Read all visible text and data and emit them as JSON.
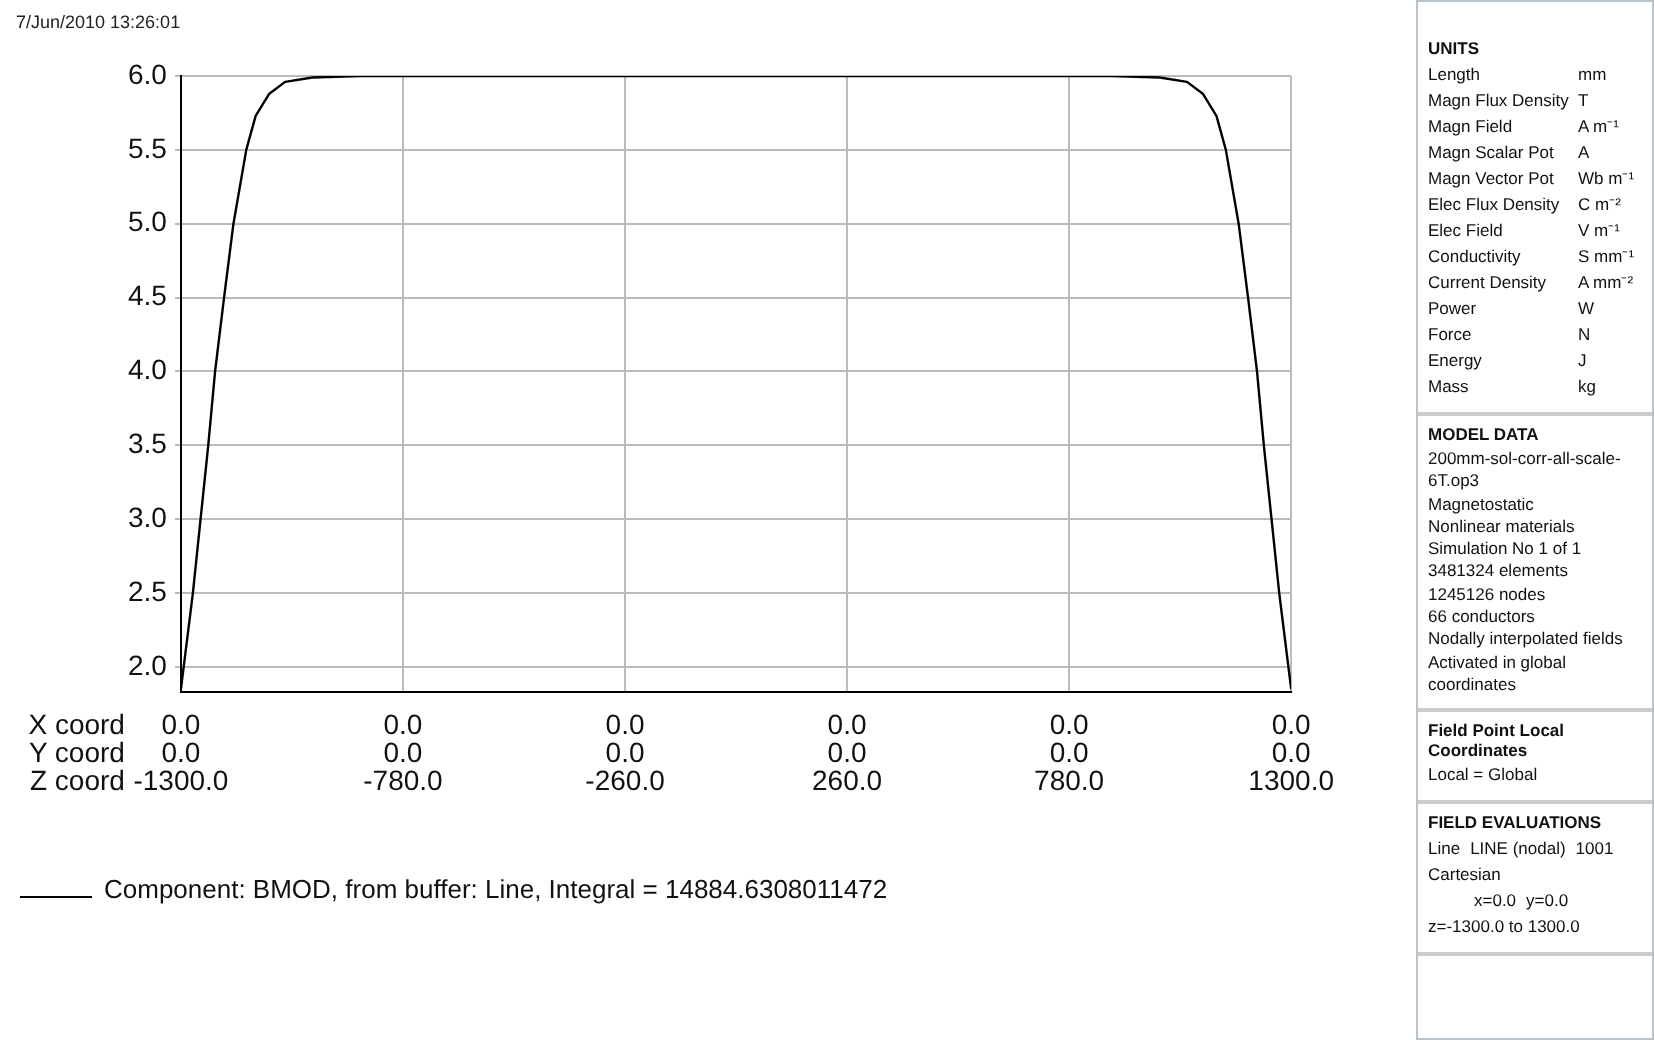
{
  "chart_data": [
    {
      "type": "line",
      "xlabel": "Z coord",
      "annotations": [
        "7/Jun/2010 13:26:01",
        "X coord\t0.0\t0.0\t0.0\t0.0\t0.0\t0.0",
        "Y coord\t0.0\t0.0\t0.0\t0.0\t0.0\t0.0"
      ],
      "x": [
        -1300,
        -1272,
        -1254,
        -1236,
        -1220,
        -1199,
        -1177,
        -1147,
        -1125,
        -1093,
        -1056,
        -992,
        -880,
        0,
        880,
        992,
        1056,
        1093,
        1125,
        1147,
        1177,
        1199,
        1220,
        1236,
        1254,
        1272,
        1300
      ],
      "series": [
        {
          "name": "Component: BMOD, from buffer: Line, Integral = 14884.6308011472",
          "color": "#000000",
          "values": [
            1.85,
            2.5,
            3.0,
            3.5,
            4.0,
            4.5,
            5.0,
            5.5,
            5.73,
            5.88,
            5.96,
            5.99,
            6.0,
            6.0,
            6.0,
            5.99,
            5.96,
            5.88,
            5.73,
            5.5,
            5.0,
            4.5,
            4.0,
            3.5,
            3.0,
            2.5,
            1.85
          ]
        }
      ],
      "xlim": [
        -1300,
        1300
      ],
      "xticks": [
        {
          "value": -1300,
          "label": "-1300.0"
        },
        {
          "value": -780,
          "label": "-780.0"
        },
        {
          "value": -260,
          "label": "-260.0"
        },
        {
          "value": 260,
          "label": "260.0"
        },
        {
          "value": 780,
          "label": "780.0"
        },
        {
          "value": 1300,
          "label": "1300.0"
        }
      ],
      "ylim": [
        1.83,
        6.0
      ],
      "yticks": [
        {
          "value": 2,
          "label": "2.0"
        },
        {
          "value": 2.5,
          "label": "2.5"
        },
        {
          "value": 3,
          "label": "3.0"
        },
        {
          "value": 3.5,
          "label": "3.5"
        },
        {
          "value": 4,
          "label": "4.0"
        },
        {
          "value": 4.5,
          "label": "4.5"
        },
        {
          "value": 5,
          "label": "5.0"
        },
        {
          "value": 5.5,
          "label": "5.5"
        },
        {
          "value": 6,
          "label": "6.0"
        }
      ],
      "grid": true,
      "legend": "bottom left",
      "marker": "none"
    },
    {
      "type": "other",
      "title": "UNITS",
      "annotations": [
        "Length\tmm",
        "Magn Flux Density\tT",
        "Magn Field\tA m⁻¹",
        "Magn Scalar Pot\tA",
        "Magn Vector Pot\tWb m⁻¹",
        "Elec Flux Density\tC m⁻²",
        "Elec Field\tV m⁻¹",
        "Conductivity\tS mm⁻¹",
        "Current Density\tA mm⁻²",
        "Power\tW",
        "Force\tN",
        "Energy\tJ",
        "Mass\tkg"
      ]
    },
    {
      "type": "other",
      "title": "MODEL DATA",
      "annotations": [
        "200mm-sol-corr-all-scale-6T.op3",
        "Magnetostatic",
        "Nonlinear materials",
        "Simulation No 1 of 1",
        "3481324 elements",
        "1245126 nodes",
        "66 conductors",
        "Nodally interpolated fields",
        "Activated in global coordinates"
      ]
    },
    {
      "type": "other",
      "title": "Field Point Local Coordinates",
      "annotations": [
        "Local = Global"
      ]
    },
    {
      "type": "other",
      "title": "FIELD EVALUATIONS",
      "annotations": [
        "Line\tLINE (nodal)\t1001\tCartesian",
        "\tx=0.0\ty=0.0\tz=-1300.0 to 1300.0"
      ]
    }
  ]
}
